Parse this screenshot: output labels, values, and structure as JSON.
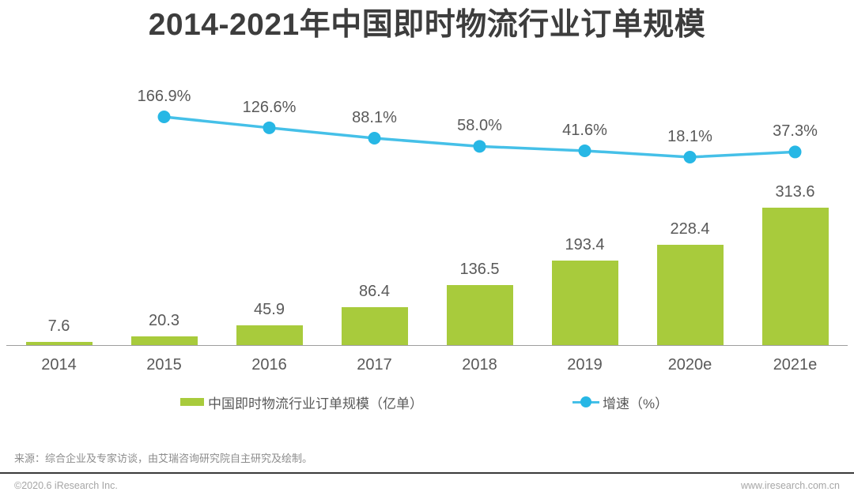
{
  "title": "2014-2021年中国即时物流行业订单规模",
  "chart_data": {
    "type": "bar",
    "title": "2014-2021年中国即时物流行业订单规模",
    "categories": [
      "2014",
      "2015",
      "2016",
      "2017",
      "2018",
      "2019",
      "2020e",
      "2021e"
    ],
    "series": [
      {
        "name": "中国即时物流行业订单规模（亿单）",
        "type": "bar",
        "color": "#a8cb3c",
        "values": [
          7.6,
          20.3,
          45.9,
          86.4,
          136.5,
          193.4,
          228.4,
          313.6
        ]
      },
      {
        "name": "增速（%）",
        "type": "line",
        "color": "#45c0e8",
        "dot_color": "#27b7e5",
        "values": [
          null,
          166.9,
          126.6,
          88.1,
          58.0,
          41.6,
          18.1,
          37.3
        ]
      }
    ],
    "xlabel": "",
    "ylabel": "",
    "grid": false,
    "legend_position": "bottom",
    "value_labels_shown": true
  },
  "legend": {
    "bar_label": "中国即时物流行业订单规模（亿单）",
    "line_label": "增速（%）"
  },
  "source_note": "来源：综合企业及专家访谈，由艾瑞咨询研究院自主研究及绘制。",
  "footer": {
    "copyright": "©2020.6 iResearch Inc.",
    "website": "www.iresearch.com.cn"
  },
  "colors": {
    "bar": "#a8cb3c",
    "line": "#45c0e8",
    "dot": "#27b7e5",
    "title_text": "#3d3d3d",
    "label_text": "#595959",
    "axis_line": "#9e9e9e"
  }
}
